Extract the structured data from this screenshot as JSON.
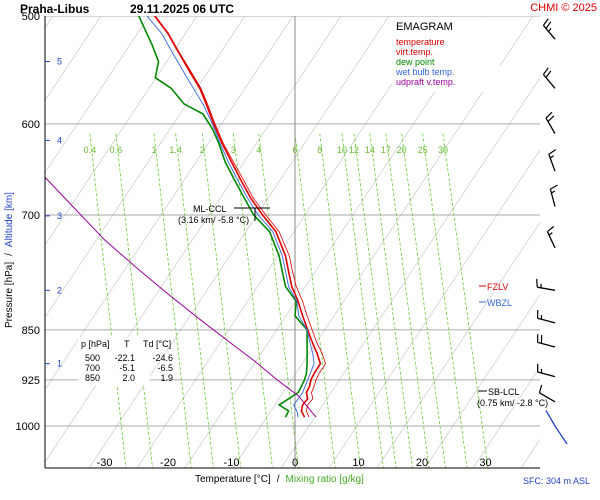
{
  "header": {
    "station": "Praha-Libus",
    "datetime": "29.11.2025 06 UTC",
    "copyright": "CHMI © 2025"
  },
  "legend": {
    "title": "EMAGRAM",
    "items": [
      {
        "label": "temperature",
        "color": "#dd0000"
      },
      {
        "label": "virt.temp.",
        "color": "#dd0000"
      },
      {
        "label": "dew point",
        "color": "#008800"
      },
      {
        "label": "wet bulb temp.",
        "color": "#3366dd"
      },
      {
        "label": "udpraft v.temp.",
        "color": "#990099"
      }
    ]
  },
  "axes": {
    "ylabel_pressure": "Pressure [hPa]",
    "ylabel_sep": "/",
    "ylabel_altitude": "Altitude [km]",
    "xlabel_temp": "Temperature [°C]",
    "xlabel_sep": "/",
    "xlabel_mix": "Mixing ratio [g/kg]",
    "footer": "SFC: 304 m ASL"
  },
  "annotations": {
    "mlccl_title": "ML-CCL",
    "mlccl_value": "(3.16 km/ -5.8 °C)",
    "sblcl_title": "SB-LCL",
    "sblcl_value": "(0.75 km/ -2.8 °C)",
    "fzlv": "FZLV",
    "wbzl": "WBZL"
  },
  "table": {
    "headers": [
      "p [hPa]",
      "T",
      "Td [°C]"
    ],
    "rows": [
      [
        "500",
        "-22.1",
        "-24.6"
      ],
      [
        "700",
        "-5.1",
        "-6.5"
      ],
      [
        "850",
        "2.0",
        "1.9"
      ]
    ]
  },
  "colors": {
    "temperature": "#dd0000",
    "dew_point": "#008800",
    "wet_bulb": "#3366dd",
    "updraft": "#990099",
    "mixing": "#66cc33",
    "isobar": "#aaaaaa",
    "wind": "#000000",
    "wind_sfc": "#2244cc"
  },
  "chart_data": {
    "type": "line",
    "xlim": [
      -40,
      34
    ],
    "ylim_hpa": [
      1020,
      500
    ],
    "pressure_ticks": [
      500,
      600,
      700,
      850,
      925,
      1000
    ],
    "altitude_ticks": [
      {
        "km": "1",
        "p": 900
      },
      {
        "km": "2",
        "p": 795
      },
      {
        "km": "3",
        "p": 701
      },
      {
        "km": "4",
        "p": 617
      },
      {
        "km": "5",
        "p": 540
      }
    ],
    "temp_ticks": [
      -30,
      -20,
      -10,
      0,
      10,
      20,
      30
    ],
    "mixing_ratio_labels": [
      {
        "label": "0.4",
        "t": -32.3
      },
      {
        "label": "0.6",
        "t": -28.2
      },
      {
        "label": "1",
        "t": -22.2
      },
      {
        "label": "1.4",
        "t": -18.8
      },
      {
        "label": "2",
        "t": -14.6
      },
      {
        "label": "3",
        "t": -9.7
      },
      {
        "label": "4",
        "t": -5.7
      },
      {
        "label": "6",
        "t": 0.0
      },
      {
        "label": "8",
        "t": 3.9
      },
      {
        "label": "10",
        "t": 7.4
      },
      {
        "label": "12",
        "t": 9.3
      },
      {
        "label": "14",
        "t": 11.8
      },
      {
        "label": "17",
        "t": 14.3
      },
      {
        "label": "20",
        "t": 16.8
      },
      {
        "label": "25",
        "t": 20.1
      },
      {
        "label": "30",
        "t": 23.3
      }
    ],
    "series": [
      {
        "name": "temperature",
        "points": [
          [
            1.5,
            985
          ],
          [
            1.0,
            975
          ],
          [
            1.2,
            965
          ],
          [
            2.0,
            955
          ],
          [
            1.8,
            945
          ],
          [
            2.3,
            935
          ],
          [
            2.5,
            925
          ],
          [
            3.0,
            915
          ],
          [
            4.0,
            900
          ],
          [
            3.5,
            885
          ],
          [
            2.8,
            870
          ],
          [
            2.0,
            850
          ],
          [
            1.2,
            830
          ],
          [
            0.5,
            810
          ],
          [
            -0.5,
            790
          ],
          [
            -1.0,
            770
          ],
          [
            -1.5,
            750
          ],
          [
            -3.0,
            720
          ],
          [
            -5.1,
            700
          ],
          [
            -7.0,
            680
          ],
          [
            -8.5,
            660
          ],
          [
            -10.0,
            640
          ],
          [
            -11.5,
            620
          ],
          [
            -12.8,
            600
          ],
          [
            -14.0,
            580
          ],
          [
            -15.0,
            565
          ],
          [
            -16.5,
            550
          ],
          [
            -18.5,
            530
          ],
          [
            -20.0,
            515
          ],
          [
            -22.1,
            500
          ]
        ]
      },
      {
        "name": "virt.temp.",
        "points": [
          [
            2.2,
            985
          ],
          [
            1.8,
            975
          ],
          [
            2.0,
            965
          ],
          [
            2.8,
            955
          ],
          [
            2.6,
            945
          ],
          [
            3.0,
            935
          ],
          [
            3.3,
            925
          ],
          [
            3.8,
            915
          ],
          [
            4.8,
            900
          ],
          [
            4.3,
            885
          ],
          [
            3.5,
            870
          ],
          [
            2.7,
            850
          ],
          [
            1.9,
            830
          ],
          [
            1.2,
            810
          ],
          [
            0.2,
            790
          ],
          [
            -0.4,
            770
          ],
          [
            -0.9,
            750
          ],
          [
            -2.5,
            720
          ],
          [
            -4.6,
            700
          ],
          [
            -6.6,
            680
          ],
          [
            -8.1,
            660
          ],
          [
            -9.7,
            640
          ],
          [
            -11.3,
            620
          ],
          [
            -12.6,
            600
          ],
          [
            -13.8,
            580
          ],
          [
            -14.8,
            565
          ],
          [
            -16.3,
            550
          ],
          [
            -18.4,
            530
          ],
          [
            -19.9,
            515
          ],
          [
            -22.0,
            500
          ]
        ]
      },
      {
        "name": "dew point",
        "points": [
          [
            -1.5,
            985
          ],
          [
            -1.0,
            975
          ],
          [
            -2.5,
            965
          ],
          [
            -1.0,
            955
          ],
          [
            0.5,
            945
          ],
          [
            1.0,
            935
          ],
          [
            1.5,
            925
          ],
          [
            1.8,
            915
          ],
          [
            1.9,
            900
          ],
          [
            1.9,
            885
          ],
          [
            1.9,
            870
          ],
          [
            1.9,
            850
          ],
          [
            0.0,
            830
          ],
          [
            0.2,
            810
          ],
          [
            -1.5,
            790
          ],
          [
            -2.0,
            770
          ],
          [
            -2.5,
            750
          ],
          [
            -4.0,
            720
          ],
          [
            -6.5,
            700
          ],
          [
            -8.0,
            680
          ],
          [
            -9.5,
            660
          ],
          [
            -11.0,
            640
          ],
          [
            -12.0,
            620
          ],
          [
            -13.0,
            605
          ],
          [
            -14.5,
            590
          ],
          [
            -17.5,
            580
          ],
          [
            -19.5,
            565
          ],
          [
            -22.0,
            555
          ],
          [
            -21.5,
            540
          ],
          [
            -22.5,
            525
          ],
          [
            -24.6,
            500
          ]
        ]
      },
      {
        "name": "wet bulb temp.",
        "points": [
          [
            0.5,
            985
          ],
          [
            0.3,
            975
          ],
          [
            -0.2,
            965
          ],
          [
            0.5,
            955
          ],
          [
            1.2,
            945
          ],
          [
            1.6,
            935
          ],
          [
            2.0,
            925
          ],
          [
            2.4,
            915
          ],
          [
            3.0,
            900
          ],
          [
            2.8,
            885
          ],
          [
            2.4,
            870
          ],
          [
            1.9,
            850
          ],
          [
            0.6,
            830
          ],
          [
            0.3,
            810
          ],
          [
            -1.0,
            790
          ],
          [
            -1.5,
            770
          ],
          [
            -2.0,
            750
          ],
          [
            -3.5,
            720
          ],
          [
            -5.8,
            700
          ],
          [
            -7.5,
            680
          ],
          [
            -9.0,
            660
          ],
          [
            -10.5,
            640
          ],
          [
            -11.8,
            620
          ],
          [
            -13.0,
            600
          ],
          [
            -14.5,
            580
          ],
          [
            -16.0,
            565
          ],
          [
            -17.5,
            550
          ],
          [
            -19.5,
            530
          ],
          [
            -21.0,
            515
          ],
          [
            -23.3,
            500
          ]
        ]
      },
      {
        "name": "udpraft v.temp.",
        "points": [
          [
            3.3,
            985
          ],
          [
            0.5,
            950
          ],
          [
            -2.8,
            925
          ],
          [
            -6.5,
            895
          ],
          [
            -10.0,
            870
          ],
          [
            -15.0,
            835
          ],
          [
            -20.0,
            800
          ],
          [
            -25.0,
            765
          ],
          [
            -30.0,
            730
          ],
          [
            -35.0,
            690
          ],
          [
            -40.0,
            652
          ],
          [
            -44.0,
            620
          ],
          [
            -48.0,
            590
          ],
          [
            -53.0,
            550
          ],
          [
            -58.0,
            515
          ]
        ]
      }
    ],
    "levels": {
      "fzlv_hpa": 790,
      "wbzl_hpa": 802,
      "sblcl_hpa": 923,
      "mlccl_hpa": 688
    },
    "wind_barbs": [
      {
        "p": 520,
        "dir": 320,
        "kt": 25
      },
      {
        "p": 565,
        "dir": 320,
        "kt": 20
      },
      {
        "p": 610,
        "dir": 330,
        "kt": 20
      },
      {
        "p": 650,
        "dir": 340,
        "kt": 15
      },
      {
        "p": 690,
        "dir": 345,
        "kt": 15
      },
      {
        "p": 740,
        "dir": 335,
        "kt": 15
      },
      {
        "p": 795,
        "dir": 280,
        "kt": 15
      },
      {
        "p": 840,
        "dir": 285,
        "kt": 15
      },
      {
        "p": 875,
        "dir": 285,
        "kt": 20
      },
      {
        "p": 920,
        "dir": 285,
        "kt": 15
      },
      {
        "p": 960,
        "dir": 300,
        "kt": 10
      },
      {
        "p": 1000,
        "dir": 330,
        "kt": 0
      }
    ]
  }
}
